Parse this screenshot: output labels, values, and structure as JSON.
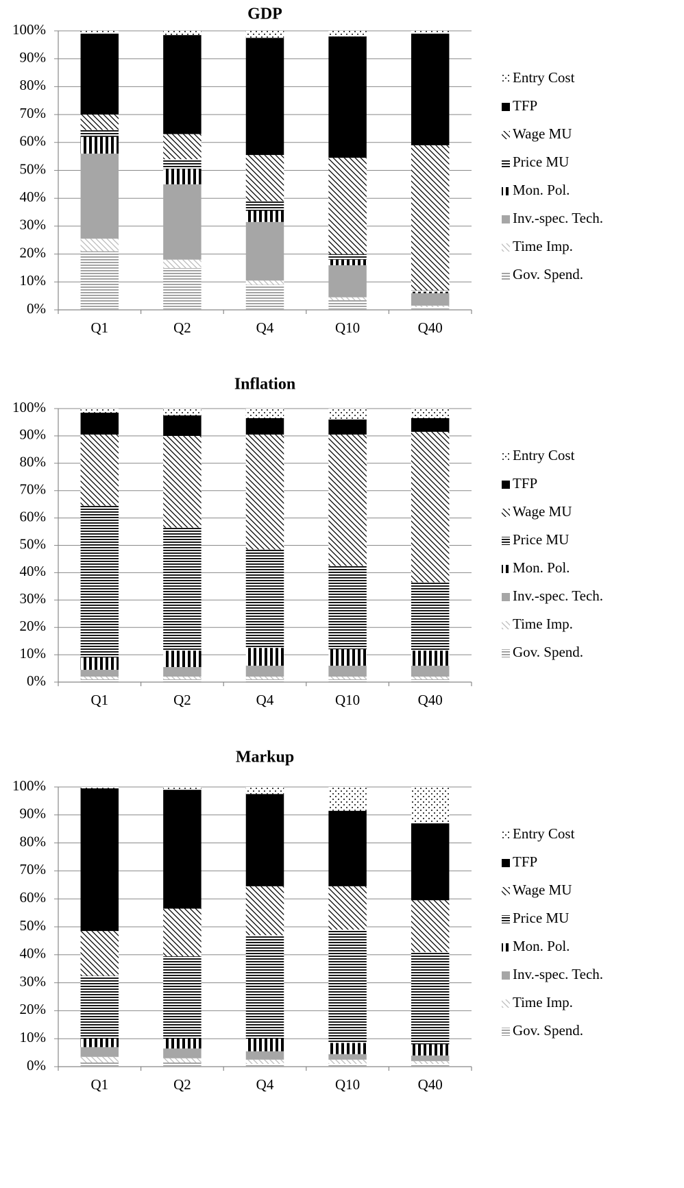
{
  "chart_data": [
    {
      "type": "stacked-bar",
      "title": "GDP",
      "categories": [
        "Q1",
        "Q2",
        "Q4",
        "Q10",
        "Q40"
      ],
      "ylim": [
        0,
        100
      ],
      "yticks": [
        {
          "value": 0,
          "label": "0%"
        },
        {
          "value": 10,
          "label": "10%"
        },
        {
          "value": 20,
          "label": "20%"
        },
        {
          "value": 30,
          "label": "30%"
        },
        {
          "value": 40,
          "label": "40%"
        },
        {
          "value": 50,
          "label": "50%"
        },
        {
          "value": 60,
          "label": "60%"
        },
        {
          "value": 70,
          "label": "70%"
        },
        {
          "value": 80,
          "label": "80%"
        },
        {
          "value": 90,
          "label": "90%"
        },
        {
          "value": 100,
          "label": "100%"
        }
      ],
      "grid": true,
      "legend": "right",
      "series": [
        {
          "name": "Gov. Spend.",
          "color": "#999999",
          "pattern": "hlines",
          "values": [
            21,
            15,
            9,
            3.5,
            1
          ]
        },
        {
          "name": "Time Imp.",
          "color": "#bbbbbb",
          "pattern": "diag",
          "values": [
            4.5,
            3,
            1.5,
            1,
            0.5
          ]
        },
        {
          "name": "Inv.-spec. Tech.",
          "color": "#a6a6a6",
          "pattern": "solid",
          "values": [
            30.5,
            27,
            21,
            11.5,
            4.5
          ]
        },
        {
          "name": "Mon. Pol.",
          "color": "#000000",
          "pattern": "vlines",
          "values": [
            6,
            5.5,
            4,
            2,
            0.5
          ]
        },
        {
          "name": "Price MU",
          "color": "#000000",
          "pattern": "hlines",
          "values": [
            2.5,
            3.5,
            3.5,
            2,
            0.5
          ]
        },
        {
          "name": "Wage MU",
          "color": "#000000",
          "pattern": "diag",
          "values": [
            5.5,
            9,
            16.5,
            34.5,
            52
          ]
        },
        {
          "name": "TFP",
          "color": "#000000",
          "pattern": "solid",
          "values": [
            29,
            35.5,
            42,
            43.5,
            40
          ]
        },
        {
          "name": "Entry Cost",
          "color": "#000000",
          "pattern": "dots",
          "values": [
            1,
            1.5,
            2.5,
            2,
            1
          ]
        }
      ]
    },
    {
      "type": "stacked-bar",
      "title": "Inflation",
      "categories": [
        "Q1",
        "Q2",
        "Q4",
        "Q10",
        "Q40"
      ],
      "ylim": [
        0,
        100
      ],
      "yticks": [
        {
          "value": 0,
          "label": "0%"
        },
        {
          "value": 10,
          "label": "10%"
        },
        {
          "value": 20,
          "label": "20%"
        },
        {
          "value": 30,
          "label": "30%"
        },
        {
          "value": 40,
          "label": "40%"
        },
        {
          "value": 50,
          "label": "50%"
        },
        {
          "value": 60,
          "label": "60%"
        },
        {
          "value": 70,
          "label": "70%"
        },
        {
          "value": 80,
          "label": "80%"
        },
        {
          "value": 90,
          "label": "90%"
        },
        {
          "value": 100,
          "label": "100%"
        }
      ],
      "grid": true,
      "legend": "right",
      "series": [
        {
          "name": "Gov. Spend.",
          "color": "#999999",
          "pattern": "hlines",
          "values": [
            1,
            1,
            1,
            1,
            1
          ]
        },
        {
          "name": "Time Imp.",
          "color": "#bbbbbb",
          "pattern": "diag",
          "values": [
            1,
            1,
            1,
            1,
            1
          ]
        },
        {
          "name": "Inv.-spec. Tech.",
          "color": "#a6a6a6",
          "pattern": "solid",
          "values": [
            2.5,
            3.5,
            4,
            4,
            4
          ]
        },
        {
          "name": "Mon. Pol.",
          "color": "#000000",
          "pattern": "vlines",
          "values": [
            4.5,
            6,
            6.5,
            6,
            5.5
          ]
        },
        {
          "name": "Price MU",
          "color": "#000000",
          "pattern": "hlines",
          "values": [
            55.5,
            45,
            36,
            30.5,
            25
          ]
        },
        {
          "name": "Wage MU",
          "color": "#000000",
          "pattern": "diag",
          "values": [
            26,
            33.5,
            42,
            48,
            55
          ]
        },
        {
          "name": "TFP",
          "color": "#000000",
          "pattern": "solid",
          "values": [
            8,
            7.5,
            6,
            5.5,
            5
          ]
        },
        {
          "name": "Entry Cost",
          "color": "#000000",
          "pattern": "dots",
          "values": [
            1.5,
            2.5,
            3.5,
            4,
            3.5
          ]
        }
      ]
    },
    {
      "type": "stacked-bar",
      "title": "Markup",
      "categories": [
        "Q1",
        "Q2",
        "Q4",
        "Q10",
        "Q40"
      ],
      "ylim": [
        0,
        100
      ],
      "yticks": [
        {
          "value": 0,
          "label": "0%"
        },
        {
          "value": 10,
          "label": "10%"
        },
        {
          "value": 20,
          "label": "20%"
        },
        {
          "value": 30,
          "label": "30%"
        },
        {
          "value": 40,
          "label": "40%"
        },
        {
          "value": 50,
          "label": "50%"
        },
        {
          "value": 60,
          "label": "60%"
        },
        {
          "value": 70,
          "label": "70%"
        },
        {
          "value": 80,
          "label": "80%"
        },
        {
          "value": 90,
          "label": "90%"
        },
        {
          "value": 100,
          "label": "100%"
        }
      ],
      "grid": true,
      "legend": "right",
      "series": [
        {
          "name": "Gov. Spend.",
          "color": "#999999",
          "pattern": "hlines",
          "values": [
            1.5,
            1.5,
            1,
            1,
            1
          ]
        },
        {
          "name": "Time Imp.",
          "color": "#bbbbbb",
          "pattern": "diag",
          "values": [
            2,
            1.5,
            1.5,
            1.5,
            1
          ]
        },
        {
          "name": "Inv.-spec. Tech.",
          "color": "#a6a6a6",
          "pattern": "solid",
          "values": [
            3.5,
            3.5,
            3,
            2,
            2
          ]
        },
        {
          "name": "Mon. Pol.",
          "color": "#000000",
          "pattern": "vlines",
          "values": [
            3,
            3.5,
            4.5,
            4,
            4
          ]
        },
        {
          "name": "Price MU",
          "color": "#000000",
          "pattern": "hlines",
          "values": [
            22.5,
            29.5,
            37,
            40.5,
            33
          ]
        },
        {
          "name": "Wage MU",
          "color": "#000000",
          "pattern": "diag",
          "values": [
            16,
            17,
            17.5,
            15.5,
            18.5
          ]
        },
        {
          "name": "TFP",
          "color": "#000000",
          "pattern": "solid",
          "values": [
            51,
            42.5,
            33,
            27,
            27.5
          ]
        },
        {
          "name": "Entry Cost",
          "color": "#000000",
          "pattern": "dots",
          "values": [
            0.5,
            1,
            2.5,
            8.5,
            13
          ]
        }
      ]
    }
  ]
}
